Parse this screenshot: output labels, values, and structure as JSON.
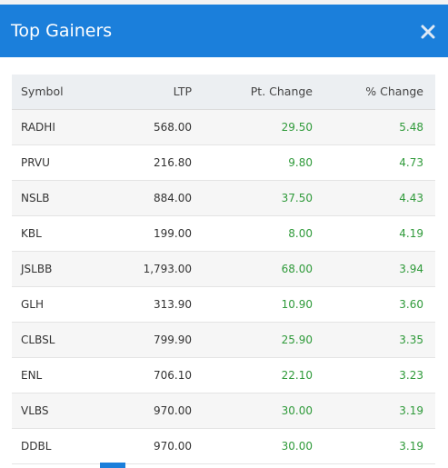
{
  "modal": {
    "title": "Top Gainers"
  },
  "table": {
    "columns": [
      "Symbol",
      "LTP",
      "Pt. Change",
      "% Change"
    ],
    "rows": [
      [
        "RADHI",
        "568.00",
        "29.50",
        "5.48"
      ],
      [
        "PRVU",
        "216.80",
        "9.80",
        "4.73"
      ],
      [
        "NSLB",
        "884.00",
        "37.50",
        "4.43"
      ],
      [
        "KBL",
        "199.00",
        "8.00",
        "4.19"
      ],
      [
        "JSLBB",
        "1,793.00",
        "68.00",
        "3.94"
      ],
      [
        "GLH",
        "313.90",
        "10.90",
        "3.60"
      ],
      [
        "CLBSL",
        "799.90",
        "25.90",
        "3.35"
      ],
      [
        "ENL",
        "706.10",
        "22.10",
        "3.23"
      ],
      [
        "VLBS",
        "970.00",
        "30.00",
        "3.19"
      ],
      [
        "DDBL",
        "970.00",
        "30.00",
        "3.19"
      ]
    ]
  }
}
